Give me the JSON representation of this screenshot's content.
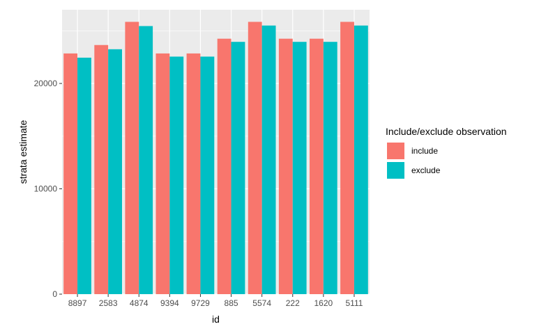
{
  "chart_data": {
    "type": "bar",
    "categories": [
      "8897",
      "2583",
      "4874",
      "9394",
      "9729",
      "885",
      "5574",
      "222",
      "1620",
      "5111"
    ],
    "series": [
      {
        "name": "include",
        "color": "#F8766D",
        "values": [
          22850,
          23650,
          25850,
          22850,
          22850,
          24250,
          25850,
          24250,
          24250,
          25850
        ]
      },
      {
        "name": "exclude",
        "color": "#00BFC4",
        "values": [
          22450,
          23250,
          25450,
          22550,
          22550,
          23950,
          25500,
          23950,
          23950,
          25500
        ]
      }
    ],
    "title": "",
    "xlabel": "id",
    "ylabel": "strata estimate",
    "ylim": [
      0,
      27000
    ],
    "yticks": [
      0,
      10000,
      20000
    ],
    "ytick_labels": [
      "0",
      "10000",
      "20000"
    ],
    "grid": true,
    "legend": {
      "title": "Include/exclude observation",
      "placement": "right"
    },
    "panel_background": "#EBEBEB",
    "grid_color": "#FFFFFF"
  }
}
